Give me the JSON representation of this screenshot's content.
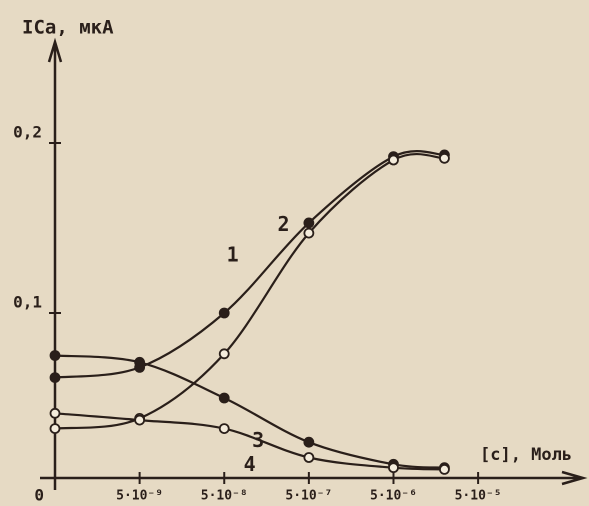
{
  "chart_data": {
    "type": "line",
    "ylabel": "ICa, мкА",
    "xlabel": "[c], Моль",
    "xscale": "log",
    "xlim": [
      5e-10,
      0.0008
    ],
    "xticks": [
      {
        "value": 5e-09,
        "label": "5·10⁻⁹"
      },
      {
        "value": 5e-08,
        "label": "5·10⁻⁸"
      },
      {
        "value": 5e-07,
        "label": "5·10⁻⁷"
      },
      {
        "value": 5e-06,
        "label": "5·10⁻⁶"
      },
      {
        "value": 5e-05,
        "label": "5·10⁻⁵"
      }
    ],
    "ylim": [
      0,
      0.26
    ],
    "yticks": [
      0,
      {
        "value": 0.1,
        "label": "0,1"
      },
      {
        "value": 0.2,
        "label": "0,2"
      }
    ],
    "grid": false,
    "x": [
      5e-10,
      5e-09,
      5e-08,
      5e-07,
      5e-06,
      2e-05
    ],
    "series": [
      {
        "name": "1",
        "color": "#2a1f1a",
        "marker": "filled",
        "values": [
          0.062,
          0.068,
          0.1,
          0.153,
          0.192,
          0.193
        ]
      },
      {
        "name": "2",
        "color": "#2a1f1a",
        "marker": "open",
        "values": [
          0.032,
          0.038,
          0.076,
          0.147,
          0.19,
          0.191
        ]
      },
      {
        "name": "3",
        "color": "#2a1f1a",
        "marker": "filled",
        "values": [
          0.075,
          0.071,
          0.05,
          0.024,
          0.011,
          0.009
        ]
      },
      {
        "name": "4",
        "color": "#2a1f1a",
        "marker": "open",
        "values": [
          0.041,
          0.037,
          0.032,
          0.015,
          0.009,
          0.008
        ]
      }
    ]
  }
}
